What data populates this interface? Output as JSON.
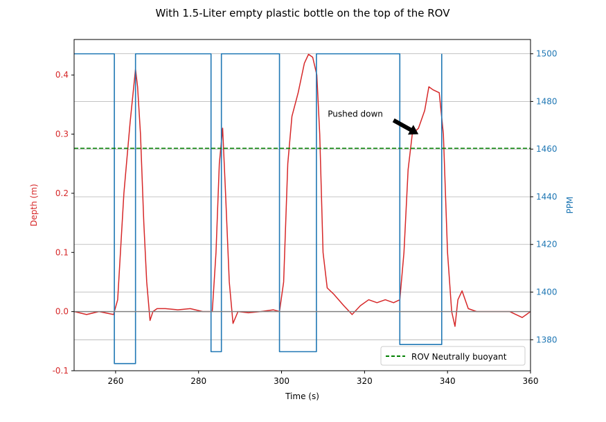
{
  "chart_data": {
    "type": "line",
    "title": "With 1.5-Liter empty plastic bottle on the top of the ROV",
    "xlabel": "Time (s)",
    "ylabel_left": "Depth (m)",
    "ylabel_right": "PPM",
    "xlim": [
      250,
      360
    ],
    "ylim_left": [
      -0.1,
      0.46
    ],
    "ylim_right": [
      1367,
      1506
    ],
    "xticks": [
      260,
      280,
      300,
      320,
      340,
      360
    ],
    "yticks_left": [
      -0.1,
      0.0,
      0.1,
      0.2,
      0.3,
      0.4
    ],
    "yticks_right": [
      1380,
      1400,
      1420,
      1440,
      1460,
      1480,
      1500
    ],
    "grid": "horizontal lines at right-axis ticks",
    "colors": {
      "depth": "#d62728",
      "ppm": "#1f77b4",
      "neutral": "#008000",
      "zero": "#808080",
      "grid": "#b0b0b0"
    },
    "legend": {
      "placement": "lower-right",
      "entries": [
        "ROV Neutrally buoyant"
      ]
    },
    "annotation": {
      "text": "Pushed down",
      "target": {
        "x": 333,
        "y": 0.3
      }
    },
    "series": [
      {
        "name": "",
        "axis": "left",
        "color": "#d62728",
        "x": [
          250,
          253,
          256,
          259.5,
          260.5,
          262,
          263.5,
          264.8,
          265.3,
          266,
          266.8,
          267.5,
          268.3,
          269,
          270,
          272,
          275,
          278,
          281,
          283.3,
          284.2,
          285,
          285.8,
          286.5,
          287.4,
          288.3,
          289.5,
          292,
          295,
          298,
          299.5,
          300.5,
          301.5,
          302.5,
          304,
          305.5,
          306.5,
          307.5,
          308.5,
          309.2,
          310,
          311,
          312.5,
          315,
          317,
          319,
          321,
          323,
          325,
          327,
          328.5,
          329.5,
          330.5,
          331.5,
          333,
          334.5,
          335.5,
          336.5,
          338,
          339,
          340,
          341,
          341.8,
          342.5,
          343.5,
          345,
          347,
          350,
          355,
          358,
          360
        ],
        "y": [
          0.0,
          -0.005,
          0.0,
          -0.005,
          0.02,
          0.2,
          0.32,
          0.41,
          0.38,
          0.3,
          0.15,
          0.05,
          -0.015,
          0.0,
          0.005,
          0.005,
          0.003,
          0.005,
          0.0,
          0.0,
          0.1,
          0.25,
          0.31,
          0.2,
          0.05,
          -0.02,
          0.0,
          -0.002,
          0.0,
          0.003,
          0.0,
          0.05,
          0.25,
          0.33,
          0.37,
          0.42,
          0.435,
          0.43,
          0.4,
          0.3,
          0.1,
          0.04,
          0.03,
          0.01,
          -0.005,
          0.01,
          0.02,
          0.015,
          0.02,
          0.015,
          0.02,
          0.1,
          0.24,
          0.3,
          0.31,
          0.34,
          0.38,
          0.375,
          0.37,
          0.3,
          0.1,
          0.0,
          -0.025,
          0.02,
          0.035,
          0.005,
          0.0,
          0.0,
          0.0,
          -0.01,
          0.0
        ]
      },
      {
        "name": "",
        "axis": "right",
        "color": "#1f77b4",
        "step": "post",
        "x": [
          250,
          259.7,
          264.8,
          283,
          285.5,
          299.5,
          308.4,
          328.5,
          338.6
        ],
        "y": [
          1500,
          1370,
          1500,
          1375,
          1500,
          1375,
          1500,
          1378,
          1500
        ]
      },
      {
        "name": "ROV Neutrally buoyant",
        "axis": "left",
        "color": "#008000",
        "dashed": true,
        "x": [
          250,
          360
        ],
        "y": [
          0.276,
          0.276
        ]
      },
      {
        "name": "",
        "axis": "left",
        "color": "#808080",
        "x": [
          250,
          360
        ],
        "y": [
          0.0,
          0.0
        ]
      }
    ]
  }
}
